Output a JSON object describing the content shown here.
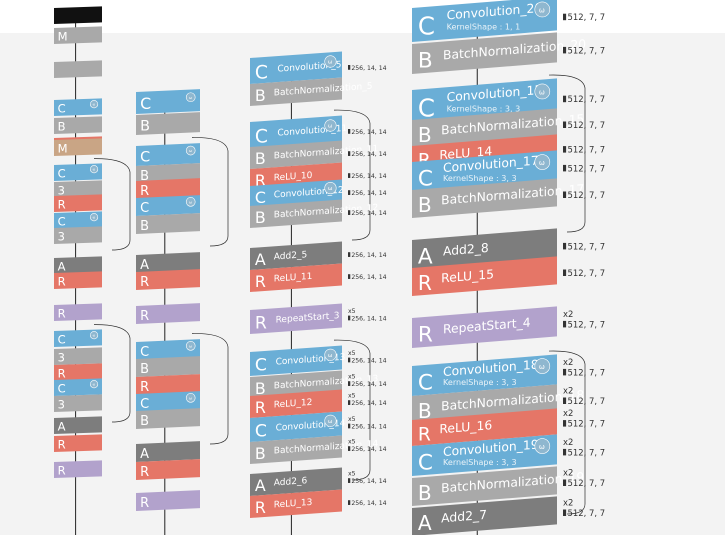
{
  "colors": {
    "conv": "#6aaed6",
    "bn": "#a9a9a9",
    "relu": "#e57667",
    "add": "#7d7d7d",
    "repeat": "#b2a2cc",
    "maxpool": "#c9a585",
    "input": "#111111",
    "container": "#2b2b2b"
  },
  "columns": [
    {
      "id": "col1",
      "blocks": [
        {
          "type": "Input",
          "letter": "",
          "name": "",
          "shape": "",
          "w": false
        },
        {
          "type": "M",
          "letter": "M",
          "name": "",
          "shape": "",
          "w": false
        },
        {
          "type": "BN",
          "letter": "",
          "name": "",
          "shape": "",
          "w": false
        },
        {
          "type": "C",
          "letter": "C",
          "name": "",
          "shape": "",
          "w": true
        },
        {
          "type": "B",
          "letter": "B",
          "name": "",
          "shape": "",
          "w": false
        },
        {
          "type": "R",
          "letter": "R",
          "name": "",
          "shape": "",
          "w": false
        },
        {
          "type": "MP",
          "letter": "M",
          "name": "",
          "shape": "",
          "w": false
        },
        {
          "type": "C",
          "letter": "C",
          "name": "",
          "shape": "",
          "w": true
        },
        {
          "type": "B",
          "letter": "3",
          "name": "",
          "shape": "",
          "w": false
        },
        {
          "type": "R",
          "letter": "R",
          "name": "",
          "shape": "",
          "w": false
        },
        {
          "type": "C",
          "letter": "C",
          "name": "",
          "shape": "",
          "w": true
        },
        {
          "type": "B",
          "letter": "3",
          "name": "",
          "shape": "",
          "w": false
        },
        {
          "type": "A",
          "letter": "A",
          "name": "",
          "shape": "",
          "w": false
        },
        {
          "type": "R",
          "letter": "R",
          "name": "",
          "shape": "",
          "w": false
        },
        {
          "type": "RS",
          "letter": "R",
          "name": "",
          "shape": "",
          "w": false
        },
        {
          "type": "C",
          "letter": "C",
          "name": "",
          "shape": "",
          "w": true
        },
        {
          "type": "B",
          "letter": "3",
          "name": "",
          "shape": "",
          "w": false
        },
        {
          "type": "R",
          "letter": "R",
          "name": "",
          "shape": "",
          "w": false
        },
        {
          "type": "C",
          "letter": "C",
          "name": "",
          "shape": "",
          "w": true
        },
        {
          "type": "B",
          "letter": "3",
          "name": "",
          "shape": "",
          "w": false
        },
        {
          "type": "A",
          "letter": "A",
          "name": "",
          "shape": "",
          "w": false
        },
        {
          "type": "R",
          "letter": "R",
          "name": "",
          "shape": "",
          "w": false
        },
        {
          "type": "RS",
          "letter": "R",
          "name": "",
          "shape": "",
          "w": false
        }
      ]
    },
    {
      "id": "col2",
      "blocks": [
        {
          "type": "C",
          "letter": "C",
          "name": "",
          "shape": "",
          "w": true
        },
        {
          "type": "B",
          "letter": "B",
          "name": "",
          "shape": "",
          "w": false
        },
        {
          "type": "C",
          "letter": "C",
          "name": "",
          "shape": "",
          "w": true
        },
        {
          "type": "B",
          "letter": "B",
          "name": "",
          "shape": "",
          "w": false
        },
        {
          "type": "R",
          "letter": "R",
          "name": "",
          "shape": "",
          "w": false
        },
        {
          "type": "C",
          "letter": "C",
          "name": "",
          "shape": "",
          "w": true
        },
        {
          "type": "B",
          "letter": "B",
          "name": "",
          "shape": "",
          "w": false
        },
        {
          "type": "A",
          "letter": "A",
          "name": "",
          "shape": "",
          "w": false
        },
        {
          "type": "R",
          "letter": "R",
          "name": "",
          "shape": "",
          "w": false
        },
        {
          "type": "RS",
          "letter": "R",
          "name": "",
          "shape": "",
          "w": false
        },
        {
          "type": "C",
          "letter": "C",
          "name": "",
          "shape": "",
          "w": true
        },
        {
          "type": "B",
          "letter": "B",
          "name": "",
          "shape": "",
          "w": false
        },
        {
          "type": "R",
          "letter": "R",
          "name": "",
          "shape": "",
          "w": false
        },
        {
          "type": "C",
          "letter": "C",
          "name": "",
          "shape": "",
          "w": true
        },
        {
          "type": "B",
          "letter": "B",
          "name": "",
          "shape": "",
          "w": false
        },
        {
          "type": "A",
          "letter": "A",
          "name": "",
          "shape": "",
          "w": false
        },
        {
          "type": "R",
          "letter": "R",
          "name": "",
          "shape": "",
          "w": false
        },
        {
          "type": "RS",
          "letter": "R",
          "name": "",
          "shape": "",
          "w": false
        }
      ]
    },
    {
      "id": "col3",
      "blocks": [
        {
          "type": "C",
          "letter": "C",
          "name": "Convolution_5",
          "shape": "",
          "w": true,
          "out": "256, 14, 14"
        },
        {
          "type": "B",
          "letter": "B",
          "name": "BatchNormalization_5",
          "shape": "",
          "w": false
        },
        {
          "type": "C",
          "letter": "C",
          "name": "Convolution_11",
          "shape": "",
          "w": true,
          "out": "256, 14, 14"
        },
        {
          "type": "B",
          "letter": "B",
          "name": "BatchNormalization_11",
          "shape": "",
          "w": false,
          "out": "256, 14, 14"
        },
        {
          "type": "R",
          "letter": "R",
          "name": "ReLU_10",
          "shape": "",
          "w": false,
          "out": "256, 14, 14"
        },
        {
          "type": "C",
          "letter": "C",
          "name": "Convolution_12",
          "shape": "",
          "w": true,
          "out": "256, 14, 14"
        },
        {
          "type": "B",
          "letter": "B",
          "name": "BatchNormalization_12",
          "shape": "",
          "w": false,
          "out": "256, 14, 14"
        },
        {
          "type": "A",
          "letter": "A",
          "name": "Add2_5",
          "shape": "",
          "w": false,
          "out": "256, 14, 14"
        },
        {
          "type": "R",
          "letter": "R",
          "name": "ReLU_11",
          "shape": "",
          "w": false,
          "out": "256, 14, 14"
        },
        {
          "type": "RS",
          "letter": "R",
          "name": "RepeatStart_3",
          "shape": "",
          "w": false,
          "out": "256, 14, 14",
          "rep": "x5"
        },
        {
          "type": "C",
          "letter": "C",
          "name": "Convolution_13",
          "shape": "",
          "w": true,
          "out": "256, 14, 14",
          "rep": "x5"
        },
        {
          "type": "B",
          "letter": "B",
          "name": "BatchNormalization_13",
          "shape": "",
          "w": false,
          "out": "256, 14, 14",
          "rep": "x5"
        },
        {
          "type": "R",
          "letter": "R",
          "name": "ReLU_12",
          "shape": "",
          "w": false,
          "out": "256, 14, 14",
          "rep": "x5"
        },
        {
          "type": "C",
          "letter": "C",
          "name": "Convolution_14",
          "shape": "",
          "w": true,
          "out": "256, 14, 14",
          "rep": "x5"
        },
        {
          "type": "B",
          "letter": "B",
          "name": "BatchNormalization_14",
          "shape": "",
          "w": false,
          "out": "256, 14, 14",
          "rep": "x5"
        },
        {
          "type": "A",
          "letter": "A",
          "name": "Add2_6",
          "shape": "",
          "w": false,
          "out": "256, 14, 14",
          "rep": "x5"
        },
        {
          "type": "R",
          "letter": "R",
          "name": "ReLU_13",
          "shape": "",
          "w": false,
          "out": "256, 14, 14"
        }
      ]
    },
    {
      "id": "col4",
      "blocks": [
        {
          "type": "C",
          "letter": "C",
          "name": "Convolution_20",
          "shape": "KernelShape : 1, 1",
          "w": true,
          "out": "512, 7, 7"
        },
        {
          "type": "B",
          "letter": "B",
          "name": "BatchNormalization_20",
          "shape": "",
          "w": false,
          "out": "512, 7, 7"
        },
        {
          "type": "C",
          "letter": "C",
          "name": "Convolution_15",
          "shape": "KernelShape : 3, 3",
          "w": true,
          "out": "512, 7, 7"
        },
        {
          "type": "B",
          "letter": "B",
          "name": "BatchNormalization_15",
          "shape": "",
          "w": false,
          "out": "512, 7, 7"
        },
        {
          "type": "R",
          "letter": "R",
          "name": "ReLU_14",
          "shape": "",
          "w": false,
          "out": "512, 7, 7"
        },
        {
          "type": "C",
          "letter": "C",
          "name": "Convolution_17",
          "shape": "KernelShape : 3, 3",
          "w": true,
          "out": "512, 7, 7"
        },
        {
          "type": "B",
          "letter": "B",
          "name": "BatchNormalization_17",
          "shape": "",
          "w": false,
          "out": "512, 7, 7"
        },
        {
          "type": "A",
          "letter": "A",
          "name": "Add2_8",
          "shape": "",
          "w": false,
          "out": "512, 7, 7"
        },
        {
          "type": "R",
          "letter": "R",
          "name": "ReLU_15",
          "shape": "",
          "w": false,
          "out": "512, 7, 7"
        },
        {
          "type": "RS",
          "letter": "R",
          "name": "RepeatStart_4",
          "shape": "",
          "w": false,
          "out": "512, 7, 7",
          "rep": "x2"
        },
        {
          "type": "C",
          "letter": "C",
          "name": "Convolution_18",
          "shape": "KernelShape : 3, 3",
          "w": true,
          "out": "512, 7, 7",
          "rep": "x2"
        },
        {
          "type": "B",
          "letter": "B",
          "name": "BatchNormalization_18",
          "shape": "",
          "w": false,
          "out": "512, 7, 7",
          "rep": "x2"
        },
        {
          "type": "R",
          "letter": "R",
          "name": "ReLU_16",
          "shape": "",
          "w": false,
          "out": "512, 7, 7",
          "rep": "x2"
        },
        {
          "type": "C",
          "letter": "C",
          "name": "Convolution_19",
          "shape": "KernelShape : 3, 3",
          "w": true,
          "out": "512, 7, 7",
          "rep": "x2"
        },
        {
          "type": "B",
          "letter": "B",
          "name": "BatchNormalization_19",
          "shape": "",
          "w": false,
          "out": "512, 7, 7",
          "rep": "x2"
        },
        {
          "type": "A",
          "letter": "A",
          "name": "Add2_7",
          "shape": "",
          "w": false,
          "out": "512, 7, 7",
          "rep": "x2"
        }
      ]
    }
  ]
}
